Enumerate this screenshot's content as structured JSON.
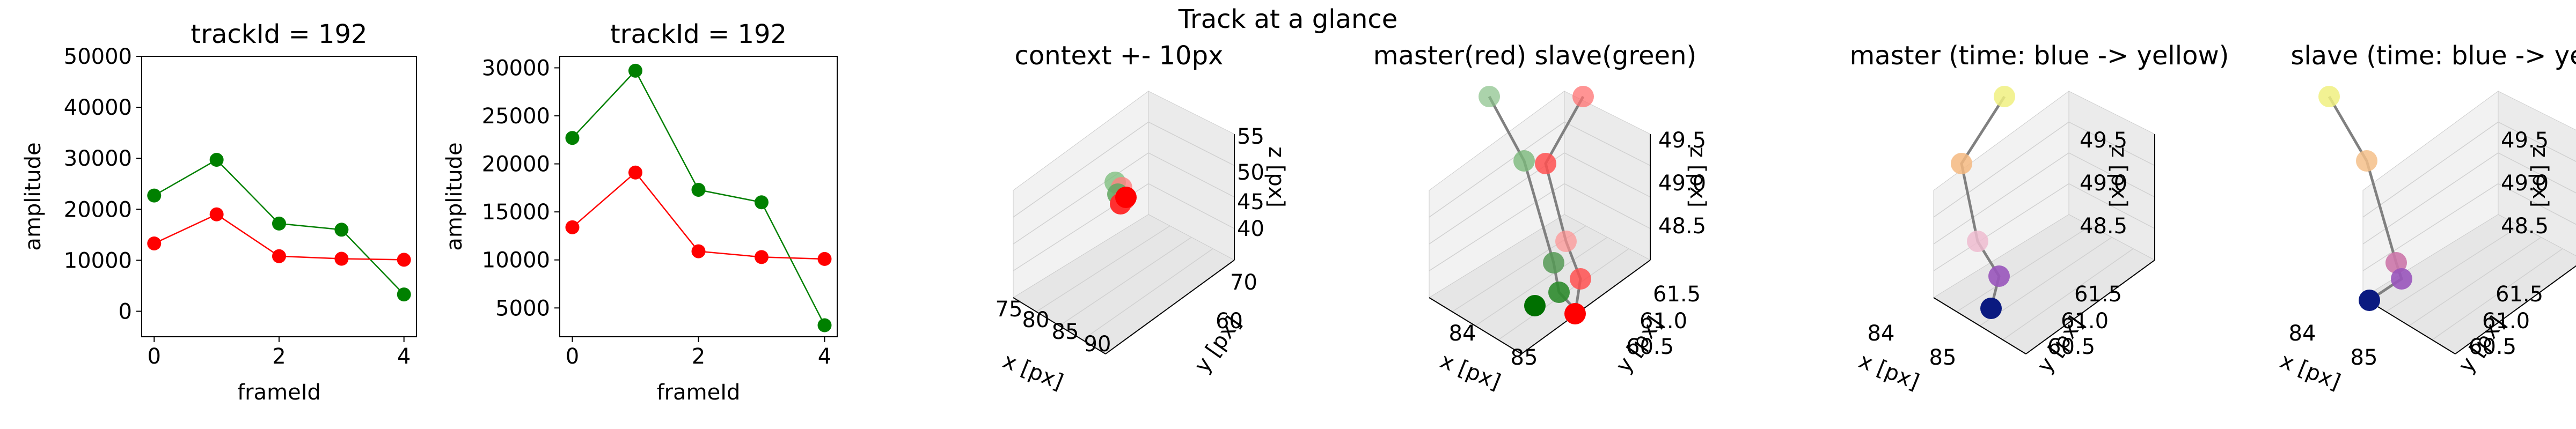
{
  "figure": {
    "suptitle": "Track at a glance"
  },
  "chart_data": [
    {
      "type": "line",
      "title": "trackId = 192",
      "xlabel": "frameId",
      "ylabel": "amplitude",
      "xlim": [
        -0.2,
        4.2
      ],
      "ylim": [
        -5000,
        50000
      ],
      "xticks": [
        "0",
        "2",
        "4"
      ],
      "yticks": [
        "0",
        "10000",
        "20000",
        "30000",
        "40000",
        "50000"
      ],
      "x": [
        0,
        1,
        2,
        3,
        4
      ],
      "series": [
        {
          "color": "#008000",
          "values": [
            22700,
            29700,
            17200,
            16000,
            3300
          ]
        },
        {
          "color": "#ff0000",
          "values": [
            13300,
            19000,
            10800,
            10300,
            10100
          ]
        }
      ]
    },
    {
      "type": "line",
      "title": "trackId = 192",
      "xlabel": "frameId",
      "ylabel": "amplitude",
      "xlim": [
        -0.2,
        4.2
      ],
      "ylim": [
        2000,
        31200
      ],
      "xticks": [
        "0",
        "2",
        "4"
      ],
      "yticks": [
        "5000",
        "10000",
        "15000",
        "20000",
        "25000",
        "30000"
      ],
      "x": [
        0,
        1,
        2,
        3,
        4
      ],
      "series": [
        {
          "color": "#008000",
          "values": [
            22700,
            29700,
            17300,
            16000,
            3200
          ]
        },
        {
          "color": "#ff0000",
          "values": [
            13400,
            19100,
            10900,
            10300,
            10100
          ]
        }
      ]
    },
    {
      "type": "scatter",
      "title": "context +- 10px",
      "xlabel": "x [px]",
      "ylabel": "y [px]",
      "zlabel": "z [px]",
      "xticks": [
        "75",
        "80",
        "85",
        "90"
      ],
      "yticks": [
        "60",
        "70"
      ],
      "zticks": [
        "40",
        "45",
        "50",
        "55"
      ],
      "grid": true
    },
    {
      "type": "scatter",
      "title": "master(red) slave(green)",
      "xlabel": "x [px]",
      "ylabel": "y [px]",
      "zlabel": "z [px]",
      "xticks": [
        "84",
        "85"
      ],
      "yticks": [
        "60.5",
        "61.0",
        "61.5"
      ],
      "zticks": [
        "48.5",
        "49.0",
        "49.5"
      ],
      "grid": true
    },
    {
      "type": "scatter",
      "title": "master (time: blue -> yellow)",
      "xlabel": "x [px]",
      "ylabel": "y [px]",
      "zlabel": "z [px]",
      "xticks": [
        "84",
        "85"
      ],
      "yticks": [
        "60.5",
        "61.0",
        "61.5"
      ],
      "zticks": [
        "48.5",
        "49.0",
        "49.5"
      ],
      "grid": true
    },
    {
      "type": "scatter",
      "title": "slave (time: blue -> yellow)",
      "xlabel": "x [px]",
      "ylabel": "y [px]",
      "zlabel": "z [px]",
      "xticks": [
        "84",
        "85"
      ],
      "yticks": [
        "60.5",
        "61.0",
        "61.5"
      ],
      "zticks": [
        "48.5",
        "49.0",
        "49.5"
      ],
      "grid": true
    }
  ]
}
